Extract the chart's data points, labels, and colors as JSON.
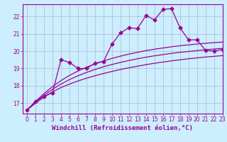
{
  "title": "",
  "xlabel": "Windchill (Refroidissement éolien,°C)",
  "x": [
    0,
    1,
    2,
    3,
    4,
    5,
    6,
    7,
    8,
    9,
    10,
    11,
    12,
    13,
    14,
    15,
    16,
    17,
    18,
    19,
    20,
    21,
    22,
    23
  ],
  "y_main": [
    16.6,
    17.1,
    17.4,
    17.6,
    19.5,
    19.35,
    19.0,
    19.0,
    19.3,
    19.4,
    20.4,
    21.05,
    21.35,
    21.3,
    22.05,
    21.8,
    22.4,
    22.45,
    21.35,
    20.65,
    20.65,
    20.05,
    20.0,
    20.1
  ],
  "y_ref1": [
    16.6,
    17.0,
    17.35,
    17.65,
    17.9,
    18.1,
    18.28,
    18.44,
    18.58,
    18.71,
    18.83,
    18.94,
    19.04,
    19.13,
    19.22,
    19.3,
    19.37,
    19.44,
    19.5,
    19.56,
    19.61,
    19.66,
    19.7,
    19.74
  ],
  "y_ref2": [
    16.6,
    17.05,
    17.45,
    17.8,
    18.1,
    18.36,
    18.58,
    18.77,
    18.94,
    19.1,
    19.23,
    19.35,
    19.46,
    19.56,
    19.65,
    19.73,
    19.8,
    19.87,
    19.93,
    19.98,
    20.03,
    20.08,
    20.12,
    20.16
  ],
  "y_ref3": [
    16.6,
    17.1,
    17.55,
    17.95,
    18.3,
    18.6,
    18.85,
    19.07,
    19.26,
    19.43,
    19.58,
    19.71,
    19.83,
    19.93,
    20.03,
    20.11,
    20.18,
    20.25,
    20.31,
    20.36,
    20.41,
    20.45,
    20.49,
    20.52
  ],
  "ylim": [
    16.4,
    22.7
  ],
  "xlim": [
    -0.5,
    23
  ],
  "yticks": [
    17,
    18,
    19,
    20,
    21,
    22
  ],
  "xticks": [
    0,
    1,
    2,
    3,
    4,
    5,
    6,
    7,
    8,
    9,
    10,
    11,
    12,
    13,
    14,
    15,
    16,
    17,
    18,
    19,
    20,
    21,
    22,
    23
  ],
  "xtick_labels": [
    "0",
    "1",
    "2",
    "3",
    "4",
    "5",
    "6",
    "7",
    "8",
    "9",
    "10",
    "11",
    "12",
    "13",
    "14",
    "15",
    "16",
    "17",
    "18",
    "19",
    "20",
    "21",
    "22",
    "23"
  ],
  "line_color": "#990099",
  "bg_color": "#cceeff",
  "marker": "D",
  "marker_size": 2.5,
  "linewidth": 0.9,
  "grid_color": "#aab8cc",
  "tick_fontsize": 5.5,
  "xlabel_fontsize": 6.5
}
